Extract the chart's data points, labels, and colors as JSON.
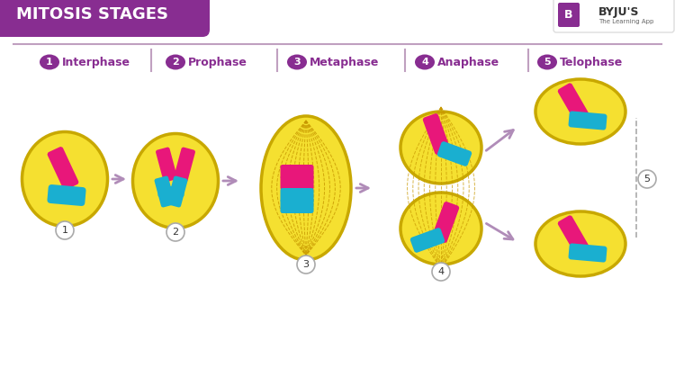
{
  "title": "MITOSIS STAGES",
  "title_bg_color": "#882D91",
  "title_text_color": "#FFFFFF",
  "bg_color": "#FFFFFF",
  "cell_color": "#F5E030",
  "cell_edge_color": "#C8A800",
  "pink_color": "#E8177A",
  "blue_color": "#1AAFD0",
  "purple_color": "#882D91",
  "arrow_color": "#B08CB8",
  "dashed_line_color": "#C89800",
  "legend_text_color": "#882D91",
  "divider_color": "#C0A0C0",
  "stages": [
    "Interphase",
    "Prophase",
    "Metaphase",
    "Anaphase",
    "Telophase"
  ]
}
